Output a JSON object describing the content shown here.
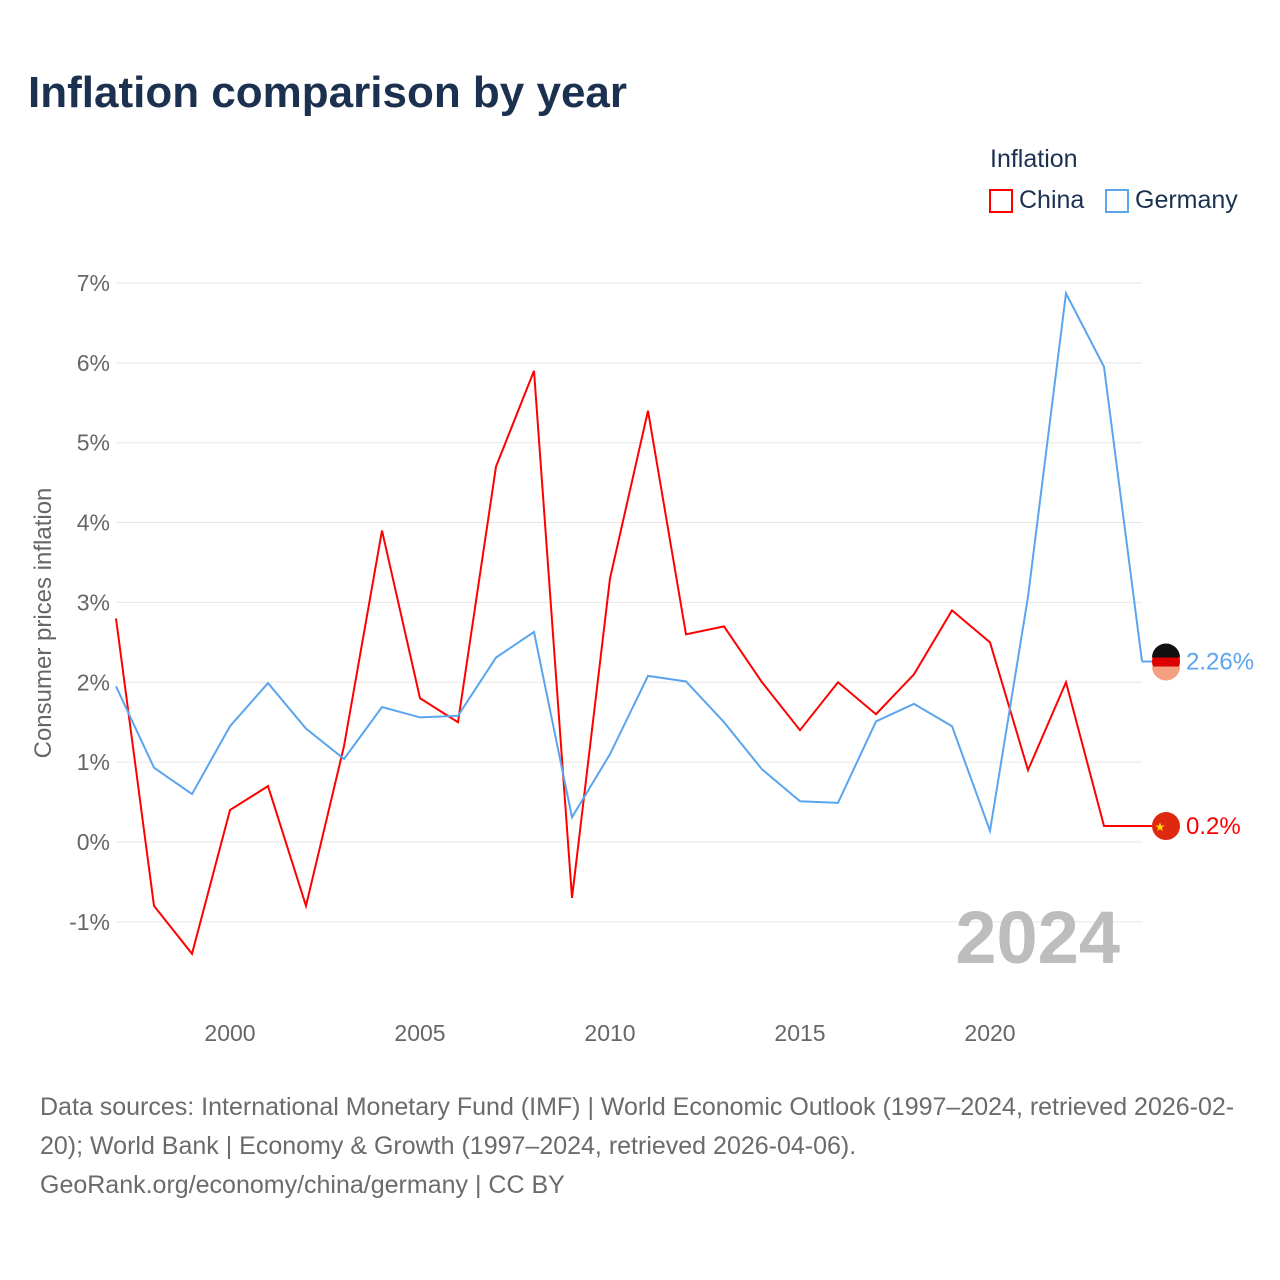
{
  "title": "Inflation comparison by year",
  "legend": {
    "title": "Inflation",
    "items": [
      "China",
      "Germany"
    ]
  },
  "watermark_year": "2024",
  "footer": {
    "line1": "Data sources: International Monetary Fund (IMF) | World Economic Outlook (1997–2024, retrieved 2026-02-20); World Bank | Economy & Growth (1997–2024, retrieved 2026-04-06).",
    "line2": "GeoRank.org/economy/china/germany | CC BY"
  },
  "chart_data": {
    "type": "line",
    "title": "Inflation comparison by year",
    "ylabel": "Consumer prices inflation",
    "xlabel": "",
    "xlim": [
      1997,
      2024
    ],
    "ylim": [
      -2.1,
      7
    ],
    "xticks": [
      2000,
      2005,
      2010,
      2015,
      2020
    ],
    "yticks": [
      -1,
      0,
      1,
      2,
      3,
      4,
      5,
      6,
      7
    ],
    "ytick_labels": [
      "-1%",
      "0%",
      "1%",
      "2%",
      "3%",
      "4%",
      "5%",
      "6%",
      "7%"
    ],
    "grid": true,
    "legend_position": "top-right",
    "x": [
      1997,
      1998,
      1999,
      2000,
      2001,
      2002,
      2003,
      2004,
      2005,
      2006,
      2007,
      2008,
      2009,
      2010,
      2011,
      2012,
      2013,
      2014,
      2015,
      2016,
      2017,
      2018,
      2019,
      2020,
      2021,
      2022,
      2023,
      2024
    ],
    "series": [
      {
        "name": "China",
        "color": "#ff0000",
        "end_label": "0.2%",
        "values": [
          2.8,
          -0.8,
          -1.4,
          0.4,
          0.7,
          -0.8,
          1.2,
          3.9,
          1.8,
          1.5,
          4.7,
          5.9,
          -0.7,
          3.3,
          5.4,
          2.6,
          2.7,
          2.0,
          1.4,
          2.0,
          1.6,
          2.1,
          2.9,
          2.5,
          0.9,
          2.0,
          0.2,
          0.2
        ]
      },
      {
        "name": "Germany",
        "color": "#5aa5ee",
        "end_label": "2.26%",
        "values": [
          1.95,
          0.93,
          0.6,
          1.45,
          1.99,
          1.42,
          1.04,
          1.69,
          1.56,
          1.58,
          2.31,
          2.63,
          0.31,
          1.1,
          2.08,
          2.01,
          1.5,
          0.91,
          0.51,
          0.49,
          1.51,
          1.73,
          1.45,
          0.14,
          3.07,
          6.87,
          5.95,
          2.26
        ]
      }
    ]
  }
}
